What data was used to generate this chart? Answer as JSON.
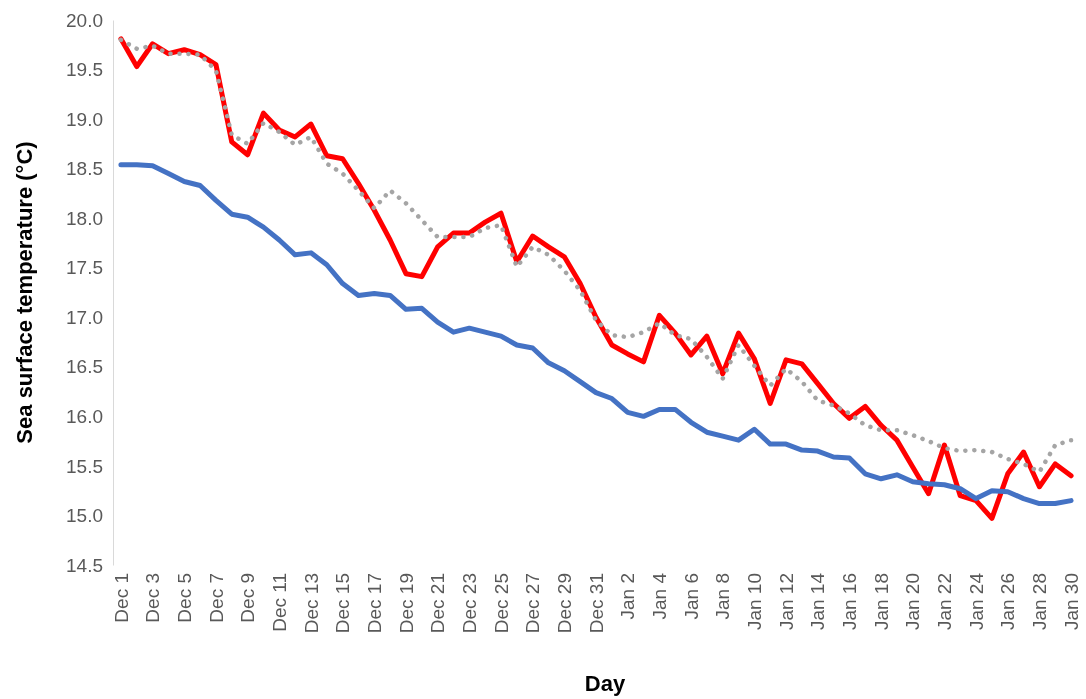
{
  "chart_data": {
    "type": "line",
    "xlabel": "Day",
    "ylabel": "Sea surface temperature (°C)",
    "categories": [
      "Dec 1",
      null,
      "Dec 3",
      null,
      "Dec 5",
      null,
      "Dec 7",
      null,
      "Dec 9",
      null,
      "Dec 11",
      null,
      "Dec 13",
      null,
      "Dec 15",
      null,
      "Dec 17",
      null,
      "Dec 19",
      null,
      "Dec 21",
      null,
      "Dec 23",
      null,
      "Dec 25",
      null,
      "Dec 27",
      null,
      "Dec 29",
      null,
      "Dec 31",
      null,
      "Jan 2",
      null,
      "Jan 4",
      null,
      "Jan 6",
      null,
      "Jan 8",
      null,
      "Jan 10",
      null,
      "Jan 12",
      null,
      "Jan 14",
      null,
      "Jan 16",
      null,
      "Jan 18",
      null,
      "Jan 20",
      null,
      "Jan 22",
      null,
      "Jan 24",
      null,
      "Jan 26",
      null,
      "Jan 28",
      null,
      "Jan 30"
    ],
    "ylim": [
      14.5,
      20
    ],
    "yticks": [
      {
        "value": 14.5,
        "label": "14.5"
      },
      {
        "value": 15,
        "label": "15.0"
      },
      15.5,
      {
        "value": 16,
        "label": "16.0"
      },
      16.5,
      {
        "value": 17,
        "label": "17.0"
      },
      17.5,
      {
        "value": 18,
        "label": "18.0"
      },
      18.5,
      {
        "value": 19,
        "label": "19.0"
      },
      19.5,
      {
        "value": 20,
        "label": "20.0"
      }
    ],
    "grid": false,
    "marker": "none",
    "series": [
      {
        "color": "#a5a5a5",
        "line_style": "dotted",
        "values": [
          19.8,
          19.71,
          19.74,
          19.66,
          19.66,
          19.65,
          19.49,
          18.84,
          18.75,
          18.96,
          18.87,
          18.74,
          18.82,
          18.55,
          18.45,
          18.28,
          18.1,
          18.28,
          18.15,
          17.98,
          17.81,
          17.81,
          17.81,
          17.9,
          17.93,
          17.51,
          17.71,
          17.63,
          17.47,
          17.27,
          16.97,
          16.82,
          16.8,
          16.85,
          16.94,
          16.82,
          16.78,
          16.6,
          16.38,
          16.72,
          16.51,
          16.31,
          16.48,
          16.35,
          16.16,
          16.11,
          16.03,
          15.91,
          15.86,
          15.86,
          15.81,
          15.75,
          15.68,
          15.65,
          15.66,
          15.64,
          15.57,
          15.52,
          15.44,
          15.71,
          15.76
        ]
      },
      {
        "color": "#ff0000",
        "line_style": "solid",
        "values": [
          19.81,
          19.53,
          19.76,
          19.66,
          19.7,
          19.65,
          19.55,
          18.77,
          18.64,
          19.06,
          18.89,
          18.82,
          18.95,
          18.63,
          18.6,
          18.35,
          18.08,
          17.78,
          17.44,
          17.41,
          17.71,
          17.85,
          17.85,
          17.96,
          18.05,
          17.56,
          17.82,
          17.71,
          17.61,
          17.34,
          17.0,
          16.72,
          16.63,
          16.55,
          17.02,
          16.84,
          16.62,
          16.81,
          16.43,
          16.84,
          16.58,
          16.13,
          16.57,
          16.53,
          16.33,
          16.13,
          15.98,
          16.1,
          15.91,
          15.76,
          15.49,
          15.22,
          15.71,
          15.2,
          15.15,
          14.97,
          15.42,
          15.64,
          15.29,
          15.52,
          15.4
        ]
      },
      {
        "color": "#4472c4",
        "line_style": "solid",
        "values": [
          18.54,
          18.54,
          18.53,
          18.45,
          18.37,
          18.33,
          18.18,
          18.04,
          18.01,
          17.91,
          17.78,
          17.63,
          17.65,
          17.53,
          17.34,
          17.22,
          17.24,
          17.22,
          17.08,
          17.09,
          16.95,
          16.85,
          16.89,
          16.85,
          16.81,
          16.72,
          16.69,
          16.54,
          16.46,
          16.35,
          16.24,
          16.18,
          16.04,
          16.0,
          16.07,
          16.07,
          15.94,
          15.84,
          15.8,
          15.76,
          15.87,
          15.72,
          15.72,
          15.66,
          15.65,
          15.59,
          15.58,
          15.42,
          15.37,
          15.41,
          15.34,
          15.32,
          15.31,
          15.27,
          15.17,
          15.25,
          15.24,
          15.17,
          15.12,
          15.12,
          15.15
        ]
      }
    ]
  }
}
